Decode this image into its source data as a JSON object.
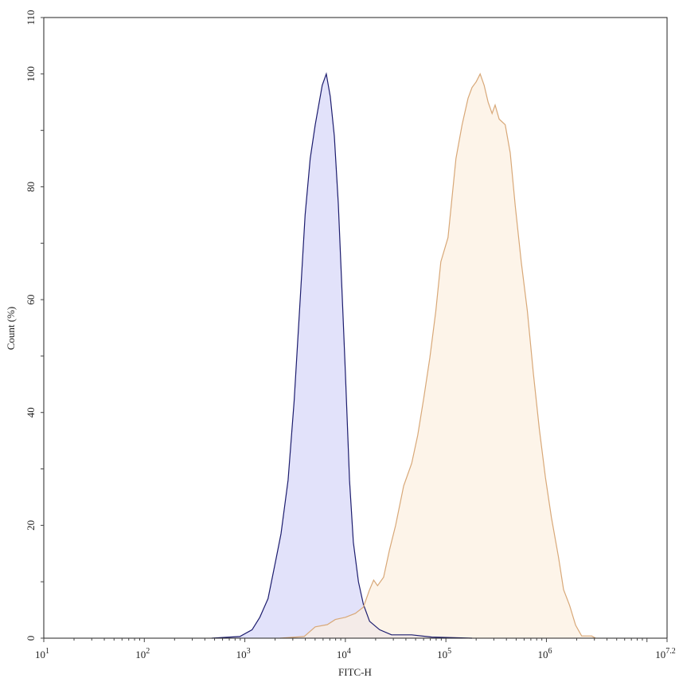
{
  "chart_data": {
    "type": "area",
    "title": "",
    "xlabel": "FITC-H",
    "ylabel": "Count  (%)",
    "x_scale": "log",
    "xlim": [
      10,
      15848932
    ],
    "ylim": [
      0,
      110
    ],
    "x_ticks": [
      {
        "base": "10",
        "exp": "1"
      },
      {
        "base": "10",
        "exp": "2"
      },
      {
        "base": "10",
        "exp": "3"
      },
      {
        "base": "10",
        "exp": "4"
      },
      {
        "base": "10",
        "exp": "5"
      },
      {
        "base": "10",
        "exp": "6"
      },
      {
        "base": "10",
        "exp": "7.2"
      }
    ],
    "y_ticks": [
      "0",
      "20",
      "40",
      "60",
      "80",
      "100",
      "110"
    ],
    "grid": false,
    "legend": "none",
    "series": [
      {
        "color": "#1c1c6e",
        "fill": "#e2e2fa",
        "x": [
          468,
          891,
          1180,
          1410,
          1700,
          2040,
          2290,
          2690,
          3090,
          3550,
          3980,
          4470,
          5010,
          5890,
          6460,
          7080,
          7760,
          8510,
          9330,
          10000,
          11000,
          12000,
          13500,
          15100,
          17400,
          21900,
          28800,
          45700,
          72400,
          182000
        ],
        "y": [
          0,
          0.3,
          1.5,
          3.7,
          7,
          14,
          18.5,
          28,
          42,
          60,
          75,
          85,
          91,
          98,
          100,
          96,
          89,
          77,
          60,
          47,
          28,
          17,
          10,
          6,
          3,
          1.5,
          0.6,
          0.6,
          0.2,
          0
        ]
      },
      {
        "color": "#d8a878",
        "fill": "#fcefe0",
        "x": [
          2240,
          3890,
          5010,
          6610,
          7940,
          10000,
          12600,
          15100,
          17400,
          19100,
          20900,
          24000,
          27500,
          31600,
          38000,
          45700,
          52500,
          60300,
          69200,
          79400,
          89100,
          105000,
          115000,
          126000,
          145000,
          166000,
          182000,
          200000,
          219000,
          240000,
          263000,
          288000,
          309000,
          339000,
          389000,
          437000,
          490000,
          562000,
          646000,
          741000,
          851000,
          977000,
          1120000,
          1320000,
          1480000,
          1700000,
          1950000,
          2240000,
          2820000,
          3090000
        ],
        "y": [
          0,
          0.3,
          2,
          2.4,
          3.3,
          3.7,
          4.4,
          5.5,
          8.6,
          10.3,
          9.3,
          10.8,
          15.7,
          20,
          27,
          31,
          36,
          42.6,
          49.7,
          58,
          66.7,
          71,
          78,
          85,
          91,
          95.7,
          97.6,
          98.6,
          100,
          98,
          95,
          93,
          94.5,
          92,
          91,
          86,
          76.6,
          66.7,
          58,
          47,
          37,
          28.5,
          21.4,
          14.3,
          8.6,
          5.8,
          2.3,
          0.4,
          0.4,
          0
        ]
      }
    ]
  }
}
